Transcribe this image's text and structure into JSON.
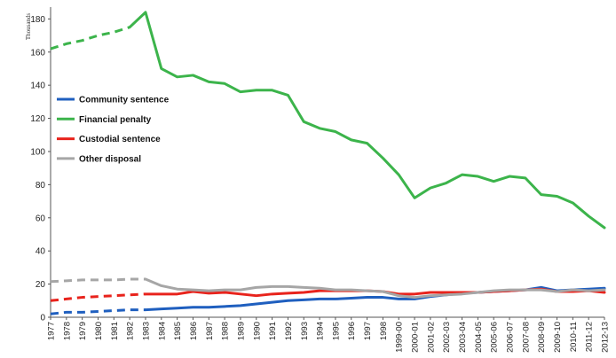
{
  "chart_data": {
    "type": "line",
    "ylabel": "Thousands",
    "ylim": [
      0,
      185
    ],
    "y_ticks": [
      0,
      20,
      40,
      60,
      80,
      100,
      120,
      140,
      160,
      180
    ],
    "x_ticks": [
      "1977",
      "1978",
      "1979",
      "1980",
      "1981",
      "1982",
      "1983",
      "1984",
      "1985",
      "1986",
      "1987",
      "1988",
      "1989",
      "1990",
      "1991",
      "1992",
      "1993",
      "1994",
      "1995",
      "1996",
      "1997",
      "1998",
      "1999-00",
      "2000-01",
      "2001-02",
      "2002-03",
      "2003-04",
      "2004-05",
      "2005-06",
      "2006-07",
      "2007-08",
      "2008-09",
      "2009-10",
      "2010-11",
      "2011-12",
      "2012-13"
    ],
    "grid": false,
    "legend_position": "left-middle",
    "series": [
      {
        "name": "Community sentence",
        "color": "#1f5fbf",
        "dashed_until": 6,
        "values": [
          2,
          3,
          3,
          3.5,
          4,
          4.5,
          4.5,
          5,
          5.5,
          6,
          6,
          6.5,
          7,
          8,
          9,
          10,
          10.5,
          11,
          11,
          11.5,
          12,
          12,
          11,
          11,
          12.5,
          13.5,
          14.5,
          15,
          15.5,
          16,
          16.5,
          18,
          16,
          16.5,
          17,
          17.5
        ]
      },
      {
        "name": "Financial penalty",
        "color": "#3cb44b",
        "dashed_until": 5,
        "values": [
          162,
          165,
          167,
          170,
          172,
          175,
          184,
          150,
          145,
          146,
          142,
          141,
          136,
          137,
          137,
          134,
          118,
          114,
          112,
          107,
          105,
          96,
          86,
          72,
          78,
          81,
          86,
          85,
          82,
          85,
          84,
          74,
          73,
          69,
          61,
          54
        ]
      },
      {
        "name": "Custodial sentence",
        "color": "#e8231c",
        "dashed_until": 6,
        "values": [
          10,
          11,
          12,
          12.5,
          13,
          13.5,
          14,
          14,
          14,
          15.5,
          14.5,
          15,
          14,
          13,
          14,
          14.5,
          15,
          16,
          16,
          16,
          16,
          15.5,
          14,
          14,
          15,
          15,
          15,
          15,
          15.5,
          16,
          16.5,
          17,
          15.5,
          15.5,
          16,
          15
        ]
      },
      {
        "name": "Other disposal",
        "color": "#a6a6a6",
        "dashed_until": 6,
        "values": [
          21.5,
          22,
          22.5,
          22.5,
          22.5,
          23,
          23,
          19,
          17,
          16.5,
          16,
          16.5,
          16.5,
          18,
          18.5,
          18.5,
          18,
          17.5,
          16.5,
          16.5,
          16,
          15.5,
          13,
          12,
          13,
          13.5,
          14,
          15,
          16,
          16.5,
          16.5,
          16.5,
          15.5,
          16.5,
          16,
          16.5
        ]
      }
    ]
  }
}
